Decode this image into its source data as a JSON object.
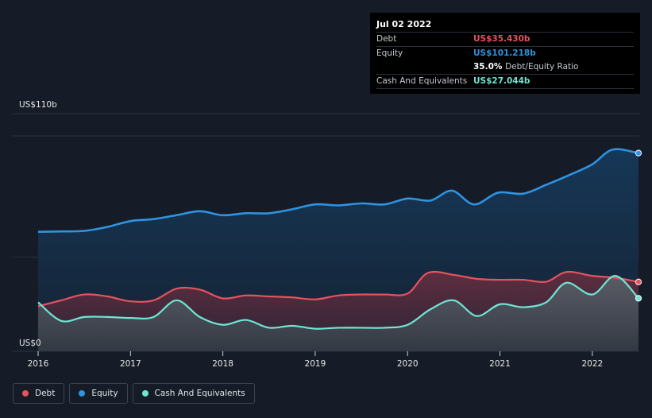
{
  "colors": {
    "background": "#151b27",
    "debt": "#e5535e",
    "equity": "#2e93e0",
    "cash": "#6ee6d3",
    "grid": "#2a303c",
    "axis_text": "#e8e8e8"
  },
  "tooltip": {
    "date": "Jul 02 2022",
    "debt_label": "Debt",
    "debt_value": "US$35.430b",
    "equity_label": "Equity",
    "equity_value": "US$101.218b",
    "ratio_value": "35.0%",
    "ratio_label": "Debt/Equity Ratio",
    "cash_label": "Cash And Equivalents",
    "cash_value": "US$27.044b"
  },
  "legend": {
    "debt": "Debt",
    "equity": "Equity",
    "cash": "Cash And Equivalents"
  },
  "chart_data": {
    "type": "area",
    "title": "",
    "xlabel": "",
    "ylabel": "",
    "y_axis_labels": [
      "US$110b",
      "US$0"
    ],
    "ylim": [
      0,
      110
    ],
    "xlim": [
      2016,
      2022.5
    ],
    "x_ticks": [
      2016,
      2017,
      2018,
      2019,
      2020,
      2021,
      2022
    ],
    "x_tick_labels": [
      "2016",
      "2017",
      "2018",
      "2019",
      "2020",
      "2021",
      "2022"
    ],
    "grid": true,
    "series": [
      {
        "name": "Equity",
        "key": "equity",
        "points": [
          [
            2016.0,
            61.0
          ],
          [
            2016.25,
            61.2
          ],
          [
            2016.5,
            61.5
          ],
          [
            2016.75,
            63.5
          ],
          [
            2017.0,
            66.5
          ],
          [
            2017.25,
            67.5
          ],
          [
            2017.5,
            69.5
          ],
          [
            2017.75,
            71.5
          ],
          [
            2018.0,
            69.5
          ],
          [
            2018.25,
            70.5
          ],
          [
            2018.5,
            70.5
          ],
          [
            2018.75,
            72.5
          ],
          [
            2019.0,
            75.0
          ],
          [
            2019.25,
            74.5
          ],
          [
            2019.5,
            75.5
          ],
          [
            2019.75,
            75.0
          ],
          [
            2020.0,
            78.0
          ],
          [
            2020.25,
            77.0
          ],
          [
            2020.48,
            82.0
          ],
          [
            2020.72,
            75.0
          ],
          [
            2020.98,
            81.0
          ],
          [
            2021.25,
            80.5
          ],
          [
            2021.5,
            85.0
          ],
          [
            2021.75,
            90.0
          ],
          [
            2022.0,
            95.5
          ],
          [
            2022.22,
            103.0
          ],
          [
            2022.5,
            101.218
          ]
        ]
      },
      {
        "name": "Debt",
        "key": "debt",
        "points": [
          [
            2016.0,
            23.0
          ],
          [
            2016.25,
            26.0
          ],
          [
            2016.5,
            29.0
          ],
          [
            2016.75,
            28.0
          ],
          [
            2017.0,
            25.5
          ],
          [
            2017.25,
            26.0
          ],
          [
            2017.5,
            32.0
          ],
          [
            2017.75,
            31.5
          ],
          [
            2018.0,
            27.0
          ],
          [
            2018.25,
            28.5
          ],
          [
            2018.5,
            28.0
          ],
          [
            2018.75,
            27.5
          ],
          [
            2019.0,
            26.5
          ],
          [
            2019.25,
            28.5
          ],
          [
            2019.5,
            29.0
          ],
          [
            2019.75,
            29.0
          ],
          [
            2020.0,
            29.5
          ],
          [
            2020.22,
            40.0
          ],
          [
            2020.5,
            39.0
          ],
          [
            2020.75,
            37.0
          ],
          [
            2021.0,
            36.5
          ],
          [
            2021.25,
            36.5
          ],
          [
            2021.5,
            35.5
          ],
          [
            2021.72,
            40.5
          ],
          [
            2022.0,
            38.5
          ],
          [
            2022.25,
            37.5
          ],
          [
            2022.5,
            35.43
          ]
        ]
      },
      {
        "name": "Cash And Equivalents",
        "key": "cash",
        "points": [
          [
            2016.0,
            25.0
          ],
          [
            2016.25,
            15.5
          ],
          [
            2016.5,
            17.5
          ],
          [
            2016.75,
            17.5
          ],
          [
            2017.0,
            17.0
          ],
          [
            2017.25,
            17.5
          ],
          [
            2017.5,
            26.0
          ],
          [
            2017.75,
            17.5
          ],
          [
            2018.0,
            13.5
          ],
          [
            2018.25,
            16.0
          ],
          [
            2018.5,
            12.0
          ],
          [
            2018.75,
            13.0
          ],
          [
            2019.0,
            11.5
          ],
          [
            2019.25,
            12.0
          ],
          [
            2019.5,
            12.0
          ],
          [
            2019.75,
            12.0
          ],
          [
            2020.0,
            13.5
          ],
          [
            2020.25,
            21.5
          ],
          [
            2020.5,
            26.0
          ],
          [
            2020.75,
            18.0
          ],
          [
            2021.0,
            24.0
          ],
          [
            2021.25,
            22.5
          ],
          [
            2021.5,
            25.0
          ],
          [
            2021.72,
            35.0
          ],
          [
            2022.0,
            29.0
          ],
          [
            2022.25,
            38.5
          ],
          [
            2022.5,
            27.044
          ]
        ]
      }
    ]
  }
}
